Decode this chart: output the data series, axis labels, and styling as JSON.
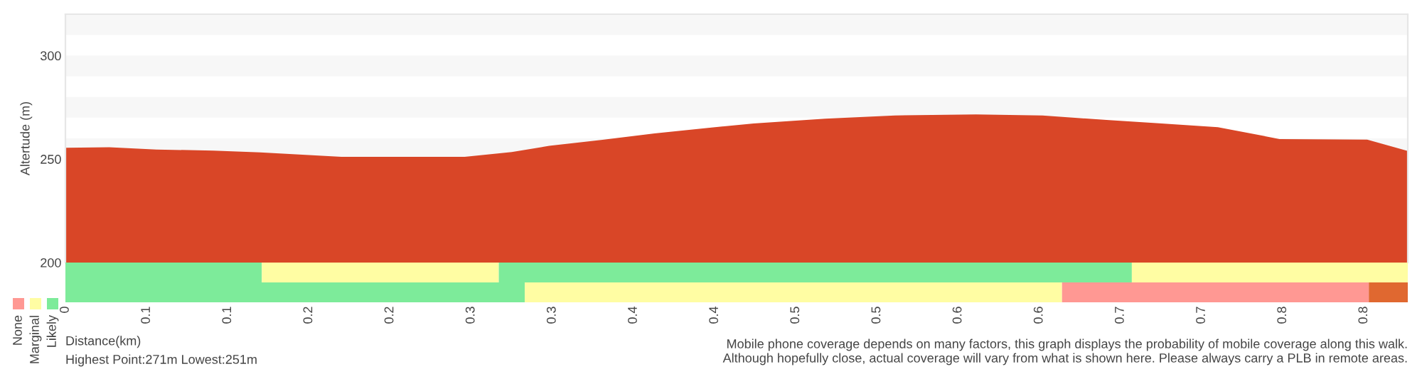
{
  "chart_data": [
    {
      "type": "area",
      "ylabel": "Altertude (m)",
      "color": "#d94627",
      "x": [
        0,
        0.027,
        0.056,
        0.091,
        0.12,
        0.146,
        0.17,
        0.246,
        0.275,
        0.298,
        0.33,
        0.363,
        0.398,
        0.424,
        0.468,
        0.511,
        0.561,
        0.602,
        0.643,
        0.672,
        0.71,
        0.748,
        0.802,
        0.827
      ],
      "values": [
        255.5,
        255.7,
        254.6,
        254.1,
        253.2,
        252.1,
        251.1,
        251.1,
        253.4,
        256.4,
        259.2,
        262.4,
        265.2,
        267.2,
        269.5,
        271.1,
        271.6,
        271.1,
        268.8,
        267.4,
        265.4,
        259.7,
        259.4,
        253.9
      ],
      "xlim": [
        0,
        0.827
      ],
      "ylim": [
        200,
        320
      ],
      "yticks": [
        200,
        250,
        300
      ],
      "tick_labels": "y",
      "grid": false,
      "bands": [
        {
          "axis": "y",
          "from": 250,
          "to": 260,
          "color": "#f7f7f7"
        },
        {
          "axis": "y",
          "from": 270,
          "to": 280,
          "color": "#f7f7f7"
        },
        {
          "axis": "y",
          "from": 290,
          "to": 300,
          "color": "#f7f7f7"
        },
        {
          "axis": "y",
          "from": 310,
          "to": 320,
          "color": "#f7f7f7"
        }
      ]
    },
    {
      "type": "bar",
      "orientation": "horizontal",
      "stacked": true,
      "categories": [
        null,
        null
      ],
      "xlabel": "Distance(km)",
      "tick_labels": "x",
      "series": [
        {
          "values": [
            0.121,
            0.283
          ],
          "colors": [
            "#7deb9a",
            "#7deb9a"
          ]
        },
        {
          "values": [
            0.146,
            0.331
          ],
          "colors": [
            "#fffda3",
            "#fffda3"
          ]
        },
        {
          "values": [
            0.39,
            0.189
          ],
          "colors": [
            "#7deb9a",
            "#ff9893"
          ]
        },
        {
          "values": [
            0.17,
            0.024
          ],
          "colors": [
            "#fffda3",
            "#e06830"
          ]
        }
      ],
      "xlim": [
        0,
        0.827
      ],
      "xticks": [
        0,
        {
          "value": 0.05,
          "label": "0.1"
        },
        0.1,
        {
          "value": 0.15,
          "label": "0.2"
        },
        0.2,
        {
          "value": 0.25,
          "label": "0.3"
        },
        0.3,
        {
          "value": 0.35,
          "label": "0.4"
        },
        0.4,
        {
          "value": 0.45,
          "label": "0.5"
        },
        0.5,
        {
          "value": 0.55,
          "label": "0.6"
        },
        0.6,
        {
          "value": 0.65,
          "label": "0.7"
        },
        0.7,
        {
          "value": 0.75,
          "label": "0.8"
        },
        0.8
      ],
      "annotations": [
        "Highest Point:271m Lowest:251m",
        "Mobile phone coverage depends on many factors, this graph displays the probability of mobile coverage along this walk.",
        "Although hopefully close, actual coverage will vary from what is shown here. Please always carry a PLB in remote areas."
      ]
    },
    {
      "type": "other",
      "categories": [
        "None",
        "Marginal",
        "Likely"
      ],
      "colors": [
        "#ff9893",
        "#fffda3",
        "#7deb9a"
      ]
    }
  ]
}
